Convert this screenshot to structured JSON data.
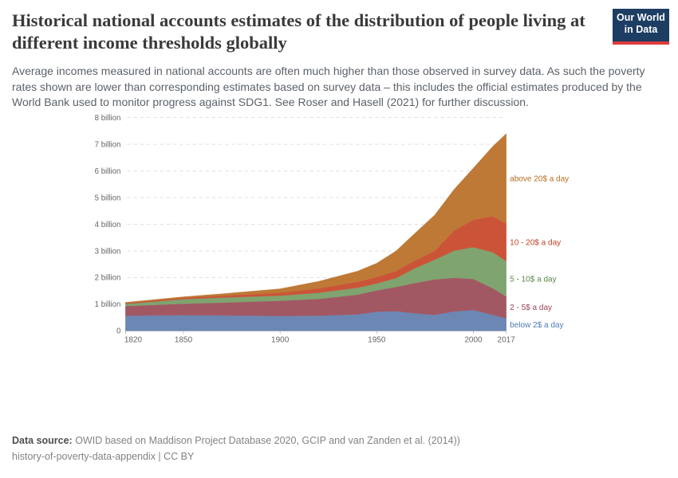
{
  "header": {
    "title": "Historical national accounts estimates of the distribution of people living at different income thresholds globally",
    "subtitle": "Average incomes measured in national accounts are often much higher than those observed in survey data. As such the poverty rates shown are lower than corresponding estimates based on survey data – this includes the official estimates produced by the World Bank used to monitor progress against SDG1. See Roser and Hasell (2021) for further discussion.",
    "logo": {
      "line1": "Our World",
      "line2": "in Data",
      "bg_color": "#1d3d63",
      "stripe_color": "#dc3d3d"
    }
  },
  "chart_data": {
    "type": "area",
    "stacked": true,
    "title": "",
    "xlabel": "",
    "ylabel": "",
    "x": [
      1820,
      1850,
      1870,
      1900,
      1920,
      1940,
      1950,
      1960,
      1970,
      1980,
      1990,
      2000,
      2010,
      2017
    ],
    "series": [
      {
        "name": "below-2-dollars",
        "label": "below 2$ a day",
        "color": "#6c87b4",
        "label_color": "#4d7ab7",
        "values": [
          0.57,
          0.59,
          0.58,
          0.56,
          0.57,
          0.62,
          0.72,
          0.74,
          0.66,
          0.6,
          0.73,
          0.78,
          0.6,
          0.47
        ]
      },
      {
        "name": "2-5-dollars",
        "label": "2 - 5$ a day",
        "color": "#a25863",
        "label_color": "#9a4352",
        "values": [
          0.36,
          0.43,
          0.48,
          0.57,
          0.63,
          0.74,
          0.8,
          0.91,
          1.14,
          1.33,
          1.26,
          1.17,
          1.0,
          0.82
        ]
      },
      {
        "name": "5-10-dollars",
        "label": "5 - 10$ a day",
        "color": "#7fa46f",
        "label_color": "#5a8646",
        "values": [
          0.08,
          0.17,
          0.19,
          0.19,
          0.23,
          0.26,
          0.26,
          0.33,
          0.56,
          0.74,
          1.02,
          1.19,
          1.35,
          1.33
        ]
      },
      {
        "name": "10-20-dollars",
        "label": "10 - 20$ a day",
        "color": "#cb5438",
        "label_color": "#c04327",
        "values": [
          0.03,
          0.05,
          0.07,
          0.11,
          0.16,
          0.22,
          0.24,
          0.26,
          0.29,
          0.33,
          0.75,
          1.03,
          1.35,
          1.4
        ]
      },
      {
        "name": "above-20-dollars",
        "label": "above 20$ a day",
        "color": "#bd7935",
        "label_color": "#b96c21",
        "values": [
          0.03,
          0.04,
          0.07,
          0.15,
          0.27,
          0.4,
          0.52,
          0.76,
          1.03,
          1.35,
          1.55,
          1.94,
          2.62,
          3.38
        ]
      }
    ],
    "xticks": [
      1820,
      1850,
      1900,
      1950,
      2000,
      2017
    ],
    "yticks": [
      {
        "v": 0,
        "label": "0"
      },
      {
        "v": 1,
        "label": "1 billion"
      },
      {
        "v": 2,
        "label": "2 billion"
      },
      {
        "v": 3,
        "label": "3 billion"
      },
      {
        "v": 4,
        "label": "4 billion"
      },
      {
        "v": 5,
        "label": "5 billion"
      },
      {
        "v": 6,
        "label": "6 billion"
      },
      {
        "v": 7,
        "label": "7 billion"
      },
      {
        "v": 8,
        "label": "8 billion"
      }
    ],
    "xlim": [
      1820,
      2017
    ],
    "ylim": [
      0,
      8
    ],
    "grid": "dashed-horizontal",
    "legend_position": "right",
    "units": "billion people"
  },
  "footer": {
    "source_label": "Data source:",
    "source_text": " OWID based on Maddison Project Database 2020, GCIP and van Zanden et al. (2014))",
    "appendix_link": "history-of-poverty-data-appendix",
    "separator": " | ",
    "license": "CC BY"
  }
}
